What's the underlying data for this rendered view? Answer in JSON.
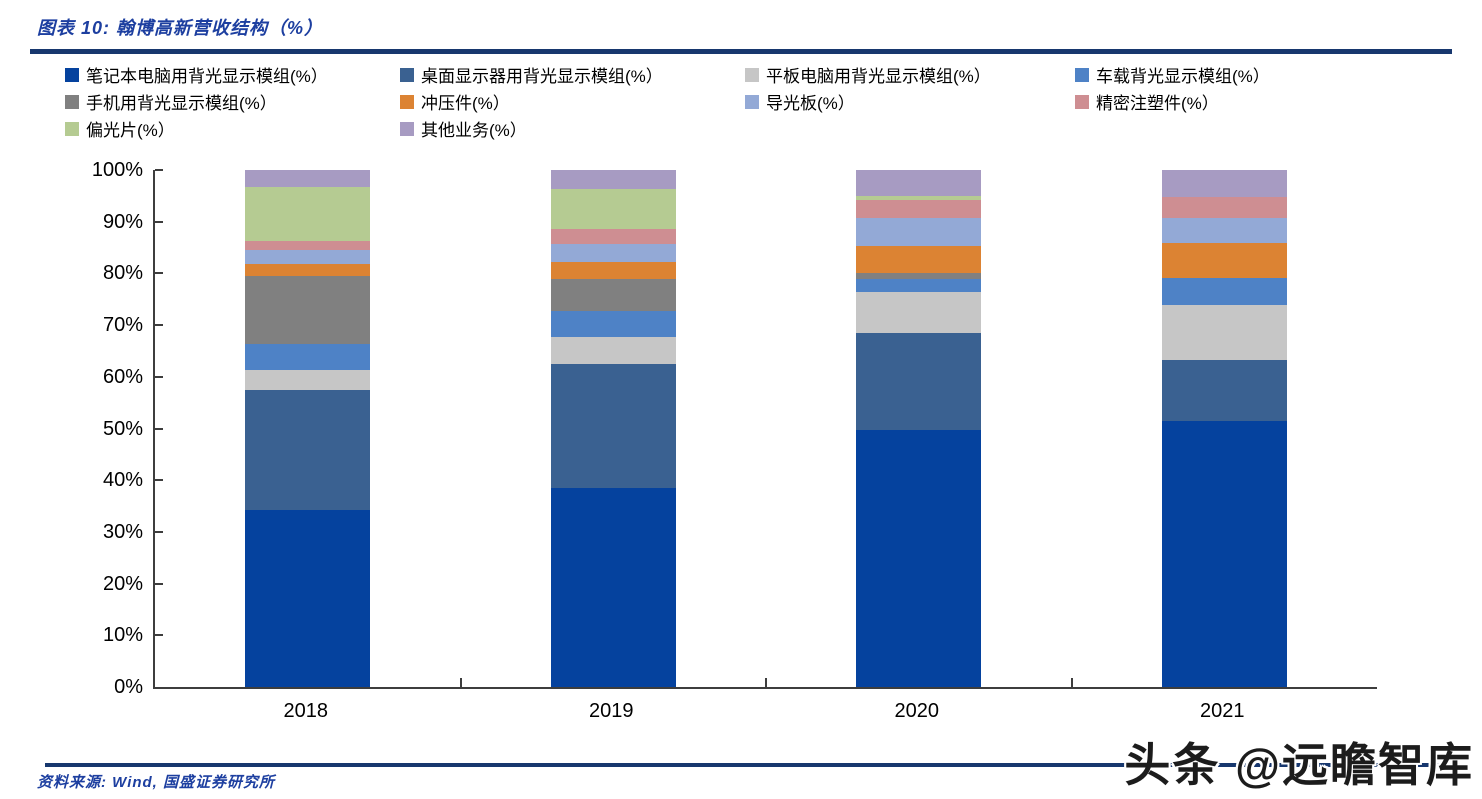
{
  "header": {
    "title": "图表 10:  翰博高新营收结构（%）"
  },
  "footer": {
    "source": "资料来源: Wind, 国盛证券研究所",
    "watermark": "头条 @远瞻智库"
  },
  "chart_data": {
    "type": "bar",
    "stacked": true,
    "title": "翰博高新营收结构（%）",
    "xlabel": "",
    "ylabel": "",
    "ylim": [
      0,
      100
    ],
    "grid": false,
    "legend_position": "top",
    "categories": [
      "2018",
      "2019",
      "2020",
      "2021"
    ],
    "yticks": [
      "0%",
      "10%",
      "20%",
      "30%",
      "40%",
      "50%",
      "60%",
      "70%",
      "80%",
      "90%",
      "100%"
    ],
    "series": [
      {
        "name": "笔记本电脑用背光显示模组(%）",
        "color": "#05429E",
        "values": [
          34.2,
          38.4,
          49.8,
          51.4
        ]
      },
      {
        "name": "桌面显示器用背光显示模组(%）",
        "color": "#3A6191",
        "values": [
          23.2,
          24.0,
          18.6,
          11.9
        ]
      },
      {
        "name": "平板电脑用背光显示模组(%）",
        "color": "#C6C6C6",
        "values": [
          4.0,
          5.4,
          8.1,
          10.6
        ]
      },
      {
        "name": "车载背光显示模组(%）",
        "color": "#4E82C6",
        "values": [
          5.0,
          5.0,
          2.5,
          5.3
        ]
      },
      {
        "name": "手机用背光显示模组(%）",
        "color": "#808080",
        "values": [
          13.2,
          6.1,
          1.0,
          0
        ]
      },
      {
        "name": "冲压件(%）",
        "color": "#DC8333",
        "values": [
          2.3,
          3.4,
          5.3,
          6.6
        ]
      },
      {
        "name": "导光板(%）",
        "color": "#93A9D6",
        "values": [
          2.6,
          3.4,
          5.5,
          5.0
        ]
      },
      {
        "name": "精密注塑件(%）",
        "color": "#CE8E92",
        "values": [
          1.8,
          2.9,
          3.4,
          3.9
        ]
      },
      {
        "name": "偏光片(%）",
        "color": "#B5CB92",
        "values": [
          10.4,
          7.7,
          0.8,
          0
        ]
      },
      {
        "name": "其他业务(%）",
        "color": "#A79BC2",
        "values": [
          3.3,
          3.7,
          5.0,
          5.3
        ]
      }
    ]
  }
}
